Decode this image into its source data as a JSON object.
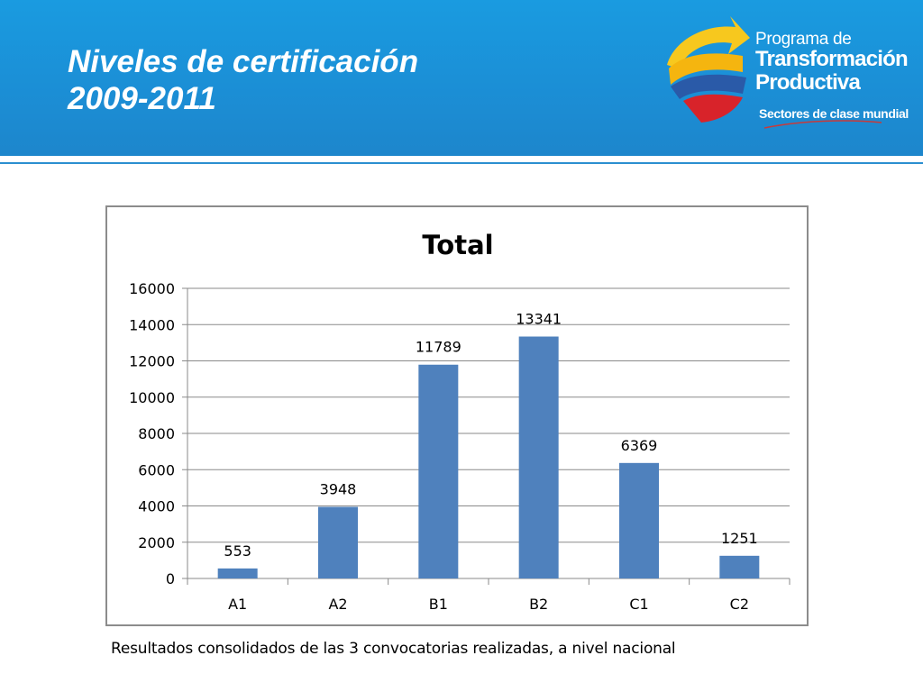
{
  "slide": {
    "title_line1": "Niveles de certificación",
    "title_line2": "2009-2011",
    "caption": "Resultados consolidados de las 3 convocatorias realizadas, a nivel nacional"
  },
  "logo": {
    "line1": "Programa de",
    "line2": "Transformación",
    "line3": "Productiva",
    "line4": "Sectores de clase mundial"
  },
  "colors": {
    "header_blue": "#1b8fd6",
    "bar_fill": "#4f81bd",
    "logo_yellow": "#f7c81e",
    "logo_blue": "#2a5aa8",
    "logo_red": "#d8232a"
  },
  "chart_data": {
    "type": "bar",
    "title": "Total",
    "categories": [
      "A1",
      "A2",
      "B1",
      "B2",
      "C1",
      "C2"
    ],
    "values": [
      553,
      3948,
      11789,
      13341,
      6369,
      1251
    ],
    "data_labels": [
      "553",
      "3948",
      "11789",
      "13341",
      "6369",
      "1251"
    ],
    "ylim": [
      0,
      16000
    ],
    "yticks": [
      0,
      2000,
      4000,
      6000,
      8000,
      10000,
      12000,
      14000,
      16000
    ],
    "ytick_labels": [
      "0",
      "2000",
      "4000",
      "6000",
      "8000",
      "10000",
      "12000",
      "14000",
      "16000"
    ],
    "grid": true,
    "legend": "none",
    "xlabel": "",
    "ylabel": ""
  }
}
